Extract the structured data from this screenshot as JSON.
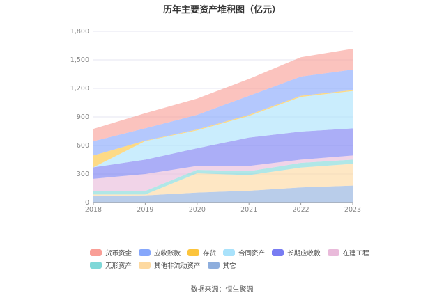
{
  "chart_data": {
    "type": "area",
    "stacked": true,
    "title": "历年主要资产堆积图（亿元）",
    "categories": [
      "2018",
      "2019",
      "2020",
      "2021",
      "2022",
      "2023"
    ],
    "ylim": [
      0,
      1800
    ],
    "yticks": [
      "0",
      "300",
      "600",
      "900",
      "1,200",
      "1,500",
      "1,800"
    ],
    "grid": true,
    "legend_position": "bottom",
    "series": [
      {
        "name": "其它",
        "color": "#8eaedd",
        "values": [
          70,
          75,
          105,
          124,
          159,
          178
        ]
      },
      {
        "name": "其他非流动资产",
        "color": "#fdd9a0",
        "values": [
          15,
          10,
          202,
          164,
          209,
          229
        ]
      },
      {
        "name": "无形资产",
        "color": "#7fd8d8",
        "values": [
          35,
          37,
          37,
          41,
          49,
          44
        ]
      },
      {
        "name": "在建工程",
        "color": "#e9bada",
        "values": [
          130,
          178,
          41,
          56,
          34,
          44
        ]
      },
      {
        "name": "长期应收款",
        "color": "#787cf2",
        "values": [
          120,
          151,
          186,
          298,
          295,
          285
        ]
      },
      {
        "name": "合同资产",
        "color": "#a9e2fb",
        "values": [
          0,
          195,
          188,
          227,
          364,
          393
        ]
      },
      {
        "name": "存货",
        "color": "#fcc43c",
        "values": [
          125,
          5,
          9,
          12,
          12,
          10
        ]
      },
      {
        "name": "应收账款",
        "color": "#86a7fb",
        "values": [
          150,
          130,
          154,
          200,
          202,
          215
        ]
      },
      {
        "name": "货币资金",
        "color": "#f99e96",
        "values": [
          130,
          158,
          171,
          178,
          203,
          219
        ]
      }
    ]
  },
  "legend_rows": [
    [
      "货币资金",
      "应收账款",
      "存货",
      "合同资产",
      "长期应收款",
      "在建工程"
    ],
    [
      "无形资产",
      "其他非流动资产",
      "其它"
    ]
  ],
  "source": "数据来源：恒生聚源"
}
